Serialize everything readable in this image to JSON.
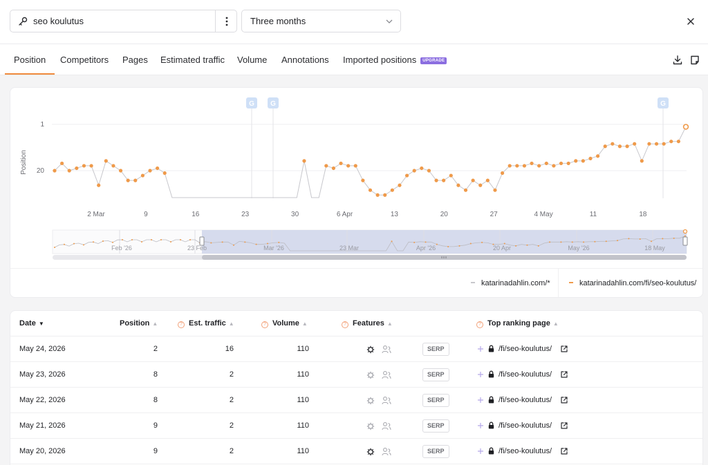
{
  "search": {
    "query": "seo koulutus",
    "icon": "key-icon",
    "more_icon": "more-vertical-icon"
  },
  "range": {
    "value": "Three months"
  },
  "tabs": [
    {
      "label": "Position",
      "active": true
    },
    {
      "label": "Competitors"
    },
    {
      "label": "Pages"
    },
    {
      "label": "Estimated traffic"
    },
    {
      "label": "Volume"
    },
    {
      "label": "Annotations"
    },
    {
      "label": "Imported positions",
      "badge": "UPGRADE"
    }
  ],
  "chart": {
    "y_axis_label": "Position",
    "y_ticks": [
      "1",
      "20"
    ],
    "x_ticks": [
      "2 Mar",
      "9",
      "16",
      "23",
      "30",
      "6 Apr",
      "13",
      "20",
      "27",
      "4 May",
      "11",
      "18"
    ],
    "annotation_marker": "G",
    "navigator_ticks": [
      "Feb '26",
      "23 Feb",
      "Mar '26",
      "23 Mar",
      "Apr '26",
      "20 Apr",
      "May '26",
      "18 May"
    ],
    "colors": {
      "series_main": "#ef9a4a",
      "series_gray": "#c7c7cc",
      "accent": "#ef8a3c",
      "badge": "#8b6ee0",
      "annotation": "#cfe0f7"
    }
  },
  "legend": [
    {
      "label": "katarinadahlin.com/*",
      "color": "#c7c7cc"
    },
    {
      "label": "katarinadahlin.com/fi/seo-koulutus/",
      "color": "#ef9a4a"
    }
  ],
  "table": {
    "headers": {
      "date": "Date",
      "position": "Position",
      "traffic": "Est. traffic",
      "volume": "Volume",
      "features": "Features",
      "top_page": "Top ranking page"
    },
    "serp_label": "SERP",
    "rows": [
      {
        "date": "May 24, 2026",
        "position": "2",
        "traffic": "16",
        "volume": "110",
        "page": "/fi/seo-koulutus/",
        "feature_active": true
      },
      {
        "date": "May 23, 2026",
        "position": "8",
        "traffic": "2",
        "volume": "110",
        "page": "/fi/seo-koulutus/",
        "feature_active": false
      },
      {
        "date": "May 22, 2026",
        "position": "8",
        "traffic": "2",
        "volume": "110",
        "page": "/fi/seo-koulutus/",
        "feature_active": false
      },
      {
        "date": "May 21, 2026",
        "position": "9",
        "traffic": "2",
        "volume": "110",
        "page": "/fi/seo-koulutus/",
        "feature_active": false
      },
      {
        "date": "May 20, 2026",
        "position": "9",
        "traffic": "2",
        "volume": "110",
        "page": "/fi/seo-koulutus/",
        "feature_active": true
      }
    ]
  },
  "chart_data": {
    "type": "line",
    "ylabel": "Position",
    "y_reversed": true,
    "y_ticks": [
      1,
      20
    ],
    "x_ticks": [
      "2 Mar",
      "9",
      "16",
      "23",
      "30",
      "6 Apr",
      "13",
      "20",
      "27",
      "4 May",
      "11",
      "18"
    ],
    "annotations": [
      "G",
      "G",
      "G"
    ],
    "series": [
      {
        "name": "katarinadahlin.com/fi/seo-koulutus/",
        "values": [
          20,
          17,
          20,
          19,
          18,
          18,
          26,
          16,
          18,
          20,
          24,
          24,
          22,
          20,
          19,
          21,
          null,
          null,
          null,
          null,
          null,
          null,
          null,
          null,
          null,
          null,
          null,
          null,
          null,
          null,
          null,
          null,
          null,
          null,
          16,
          null,
          null,
          18,
          19,
          17,
          18,
          18,
          24,
          28,
          30,
          30,
          28,
          26,
          22,
          20,
          19,
          20,
          24,
          24,
          22,
          26,
          28,
          24,
          26,
          24,
          28,
          21,
          18,
          18,
          18,
          17,
          18,
          17,
          18,
          17,
          17,
          16,
          16,
          15,
          14,
          10,
          9,
          10,
          10,
          9,
          16,
          9,
          9,
          9,
          8,
          8,
          2
        ]
      }
    ]
  }
}
